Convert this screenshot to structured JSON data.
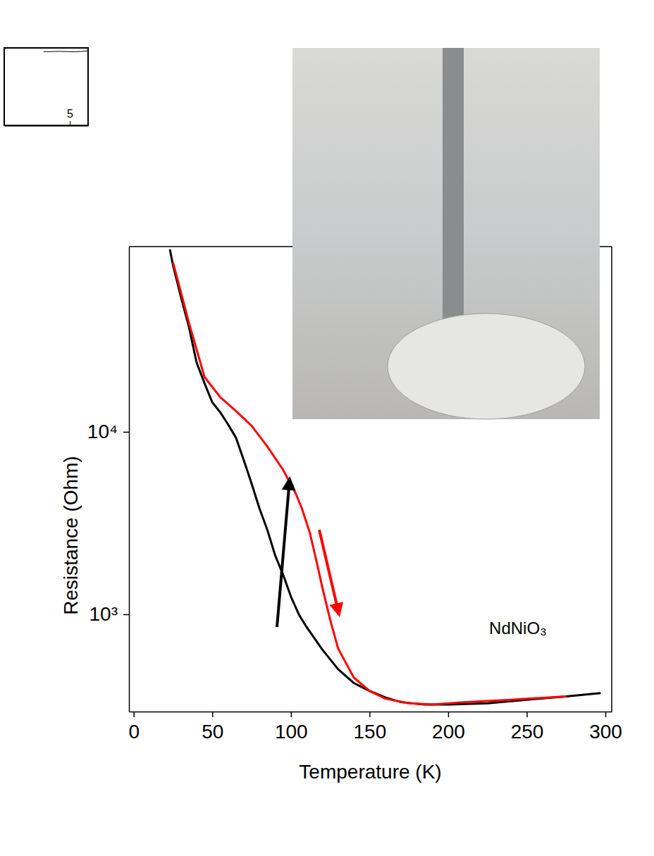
{
  "chart_data": [
    {
      "type": "line",
      "xlabel": "Temperature (K)",
      "ylabel": "Resistance (Ohm)",
      "annotations": [
        {
          "text": "NdNiO₃"
        }
      ],
      "log": "y",
      "xlim": [
        -3,
        304
      ],
      "xticks": [
        0,
        50,
        100,
        150,
        200,
        250,
        300
      ],
      "ylim": [
        293,
        103600
      ],
      "yticks": [
        {
          "value": 1000,
          "label": "10³"
        },
        {
          "value": 10000,
          "label": "10⁴"
        }
      ],
      "series": [
        {
          "color": "#000000",
          "x": [
            297,
            275,
            250,
            225,
            200,
            185,
            170,
            160,
            150,
            140,
            130,
            120,
            110,
            105,
            100,
            95,
            90,
            85,
            80,
            75,
            70,
            65,
            60,
            55,
            50,
            45,
            40,
            35,
            30,
            25,
            23
          ],
          "values": [
            370,
            355,
            340,
            325,
            320,
            320,
            330,
            350,
            380,
            420,
            500,
            640,
            850,
            1000,
            1250,
            1650,
            2100,
            2900,
            3800,
            5200,
            7000,
            9300,
            11000,
            12800,
            14500,
            18500,
            24000,
            38000,
            55000,
            82000,
            100000
          ]
        },
        {
          "color": "#ff0000",
          "x": [
            25,
            35,
            45,
            55,
            65,
            75,
            85,
            95,
            103,
            107,
            112,
            116,
            120,
            125,
            130,
            140,
            150,
            160,
            175,
            190,
            210,
            240,
            275
          ],
          "values": [
            85000,
            40000,
            20000,
            15500,
            13000,
            10800,
            8300,
            6200,
            4600,
            3800,
            2800,
            2000,
            1400,
            930,
            650,
            450,
            380,
            345,
            325,
            320,
            330,
            340,
            355
          ]
        }
      ]
    },
    {
      "type": "line",
      "tick_labels": "x",
      "xlim": [
        2.5,
        5.7
      ],
      "xticks": [
        5
      ],
      "ylim": [
        0,
        1
      ],
      "series": [
        {
          "color": "#000000",
          "x": [
            4.0,
            4.6,
            5.2,
            5.7
          ],
          "values": [
            0.95,
            0.955,
            0.95,
            0.96
          ]
        }
      ]
    }
  ]
}
